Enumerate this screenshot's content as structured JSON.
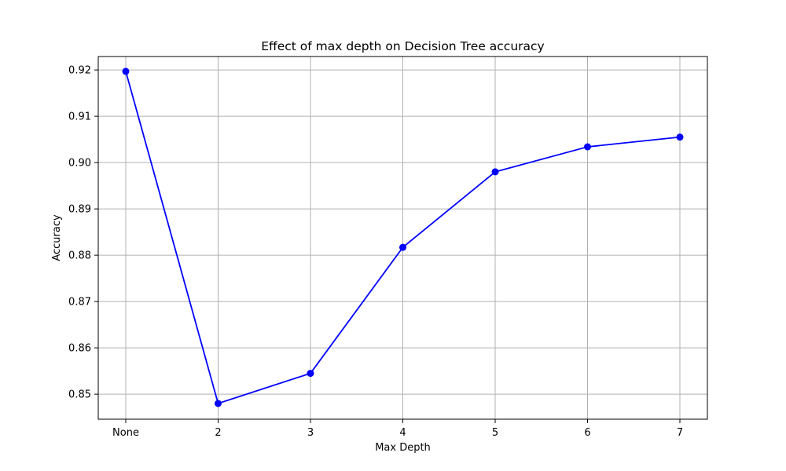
{
  "chart_data": {
    "type": "line",
    "title": "Effect of max depth on Decision Tree accuracy",
    "xlabel": "Max Depth",
    "ylabel": "Accuracy",
    "categories": [
      "None",
      "2",
      "3",
      "4",
      "5",
      "6",
      "7"
    ],
    "series": [
      {
        "values": [
          0.9197,
          0.848,
          0.8545,
          0.8817,
          0.898,
          0.9034,
          0.9055
        ],
        "color": "#0000ff",
        "marker": "circle"
      }
    ],
    "ylim": [
      0.8446,
      0.9229
    ],
    "yticks": [
      0.85,
      0.86,
      0.87,
      0.88,
      0.89,
      0.9,
      0.91,
      0.92
    ],
    "ytick_labels": [
      "0.85",
      "0.86",
      "0.87",
      "0.88",
      "0.89",
      "0.90",
      "0.91",
      "0.92"
    ],
    "grid": true,
    "grid_color": "#b0b0b0",
    "legend": "none"
  }
}
